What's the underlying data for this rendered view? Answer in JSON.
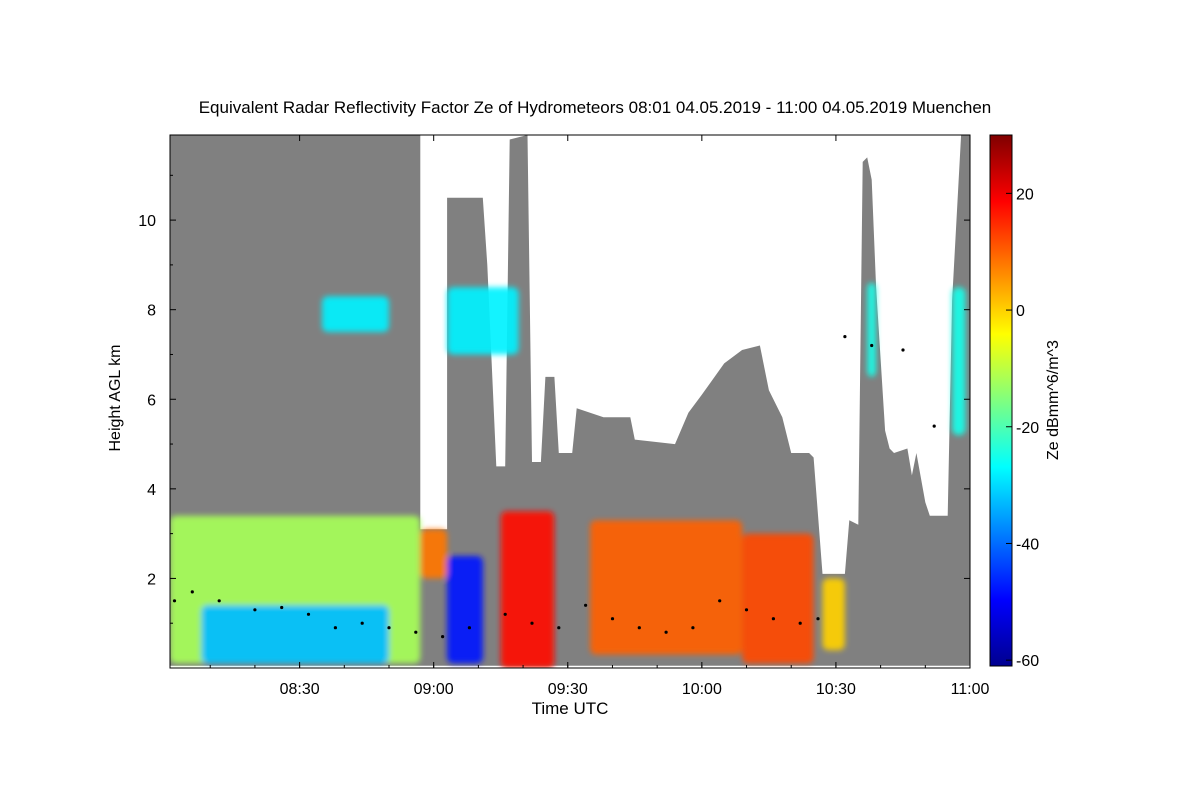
{
  "chart_data": {
    "type": "heatmap",
    "title": "Equivalent Radar Reflectivity Factor Ze of Hydrometeors   08:01 04.05.2019 - 11:00 04.05.2019 Muenchen",
    "xlabel": "Time UTC",
    "ylabel": "Height AGL km",
    "x_range_minutes": [
      481,
      660
    ],
    "x_ticks": [
      {
        "minute": 510,
        "label": "08:30"
      },
      {
        "minute": 540,
        "label": "09:00"
      },
      {
        "minute": 570,
        "label": "09:30"
      },
      {
        "minute": 600,
        "label": "10:00"
      },
      {
        "minute": 630,
        "label": "10:30"
      },
      {
        "minute": 660,
        "label": "11:00"
      }
    ],
    "ylim": [
      0,
      11.9
    ],
    "y_ticks": [
      {
        "value": 2,
        "label": "2"
      },
      {
        "value": 4,
        "label": "4"
      },
      {
        "value": 6,
        "label": "6"
      },
      {
        "value": 8,
        "label": "8"
      },
      {
        "value": 10,
        "label": "10"
      }
    ],
    "colorbar": {
      "label": "Ze dBmm^6/m^3",
      "range": [
        -61,
        30
      ],
      "ticks": [
        {
          "value": -60,
          "label": "-60"
        },
        {
          "value": -40,
          "label": "-40"
        },
        {
          "value": -20,
          "label": "-20"
        },
        {
          "value": 0,
          "label": "0"
        },
        {
          "value": 20,
          "label": "20"
        }
      ]
    },
    "no_signal_color": "#808080",
    "data_gap_color": "#ffffff",
    "measurement_top_km": [
      [
        481,
        11.9
      ],
      [
        537,
        11.9
      ],
      [
        537,
        3.1
      ],
      [
        543,
        3.1
      ],
      [
        543,
        10.5
      ],
      [
        551,
        10.5
      ],
      [
        552,
        9.0
      ],
      [
        554,
        4.5
      ],
      [
        556,
        4.5
      ],
      [
        557,
        11.8
      ],
      [
        561,
        11.9
      ],
      [
        562,
        4.6
      ],
      [
        564,
        4.6
      ],
      [
        565,
        6.5
      ],
      [
        567,
        6.5
      ],
      [
        568,
        4.8
      ],
      [
        571,
        4.8
      ],
      [
        572,
        5.8
      ],
      [
        578,
        5.6
      ],
      [
        584,
        5.6
      ],
      [
        585,
        5.1
      ],
      [
        594,
        5.0
      ],
      [
        597,
        5.7
      ],
      [
        600,
        6.1
      ],
      [
        605,
        6.8
      ],
      [
        609,
        7.1
      ],
      [
        613,
        7.2
      ],
      [
        615,
        6.2
      ],
      [
        618,
        5.6
      ],
      [
        620,
        4.8
      ],
      [
        624,
        4.8
      ],
      [
        625,
        4.7
      ],
      [
        627,
        2.1
      ],
      [
        632,
        2.1
      ],
      [
        633,
        3.3
      ],
      [
        635,
        3.2
      ],
      [
        636,
        11.3
      ],
      [
        637,
        11.4
      ],
      [
        638,
        10.9
      ],
      [
        639,
        8.5
      ],
      [
        641,
        5.3
      ],
      [
        642,
        4.9
      ],
      [
        643,
        4.8
      ],
      [
        646,
        4.9
      ],
      [
        647,
        4.3
      ],
      [
        648,
        4.8
      ],
      [
        650,
        3.7
      ],
      [
        651,
        3.4
      ],
      [
        655,
        3.4
      ],
      [
        656,
        8.2
      ],
      [
        658,
        11.9
      ],
      [
        660,
        11.9
      ]
    ],
    "reflectivity_regions": [
      {
        "t": [
          481,
          537
        ],
        "h": [
          0.1,
          3.4
        ],
        "ze_dbz": -12
      },
      {
        "t": [
          488,
          530
        ],
        "h": [
          0.1,
          1.4
        ],
        "ze_dbz": -32
      },
      {
        "t": [
          543,
          551
        ],
        "h": [
          0.1,
          2.5
        ],
        "ze_dbz": -48
      },
      {
        "t": [
          537,
          543
        ],
        "h": [
          2.0,
          3.1
        ],
        "ze_dbz": 8
      },
      {
        "t": [
          555,
          567
        ],
        "h": [
          0.0,
          3.5
        ],
        "ze_dbz": 18
      },
      {
        "t": [
          575,
          609
        ],
        "h": [
          0.3,
          3.3
        ],
        "ze_dbz": 10
      },
      {
        "t": [
          609,
          625
        ],
        "h": [
          0.1,
          3.0
        ],
        "ze_dbz": 12
      },
      {
        "t": [
          627,
          632
        ],
        "h": [
          0.4,
          2.0
        ],
        "ze_dbz": 0
      },
      {
        "t": [
          515,
          530
        ],
        "h": [
          7.5,
          8.3
        ],
        "ze_dbz": -28
      },
      {
        "t": [
          543,
          559
        ],
        "h": [
          7.0,
          8.5
        ],
        "ze_dbz": -28
      },
      {
        "t": [
          637,
          639
        ],
        "h": [
          6.5,
          8.6
        ],
        "ze_dbz": -25
      },
      {
        "t": [
          656,
          659
        ],
        "h": [
          5.2,
          8.5
        ],
        "ze_dbz": -25
      }
    ],
    "cloud_base_km": [
      [
        482,
        1.5
      ],
      [
        486,
        1.7
      ],
      [
        492,
        1.5
      ],
      [
        500,
        1.3
      ],
      [
        506,
        1.35
      ],
      [
        512,
        1.2
      ],
      [
        518,
        0.9
      ],
      [
        524,
        1.0
      ],
      [
        530,
        0.9
      ],
      [
        536,
        0.8
      ],
      [
        542,
        0.7
      ],
      [
        548,
        0.9
      ],
      [
        556,
        1.2
      ],
      [
        562,
        1.0
      ],
      [
        568,
        0.9
      ],
      [
        574,
        1.4
      ],
      [
        580,
        1.1
      ],
      [
        586,
        0.9
      ],
      [
        592,
        0.8
      ],
      [
        598,
        0.9
      ],
      [
        604,
        1.5
      ],
      [
        610,
        1.3
      ],
      [
        616,
        1.1
      ],
      [
        622,
        1.0
      ],
      [
        626,
        1.1
      ],
      [
        632,
        7.4
      ],
      [
        638,
        7.2
      ],
      [
        645,
        7.1
      ],
      [
        652,
        5.4
      ]
    ]
  }
}
